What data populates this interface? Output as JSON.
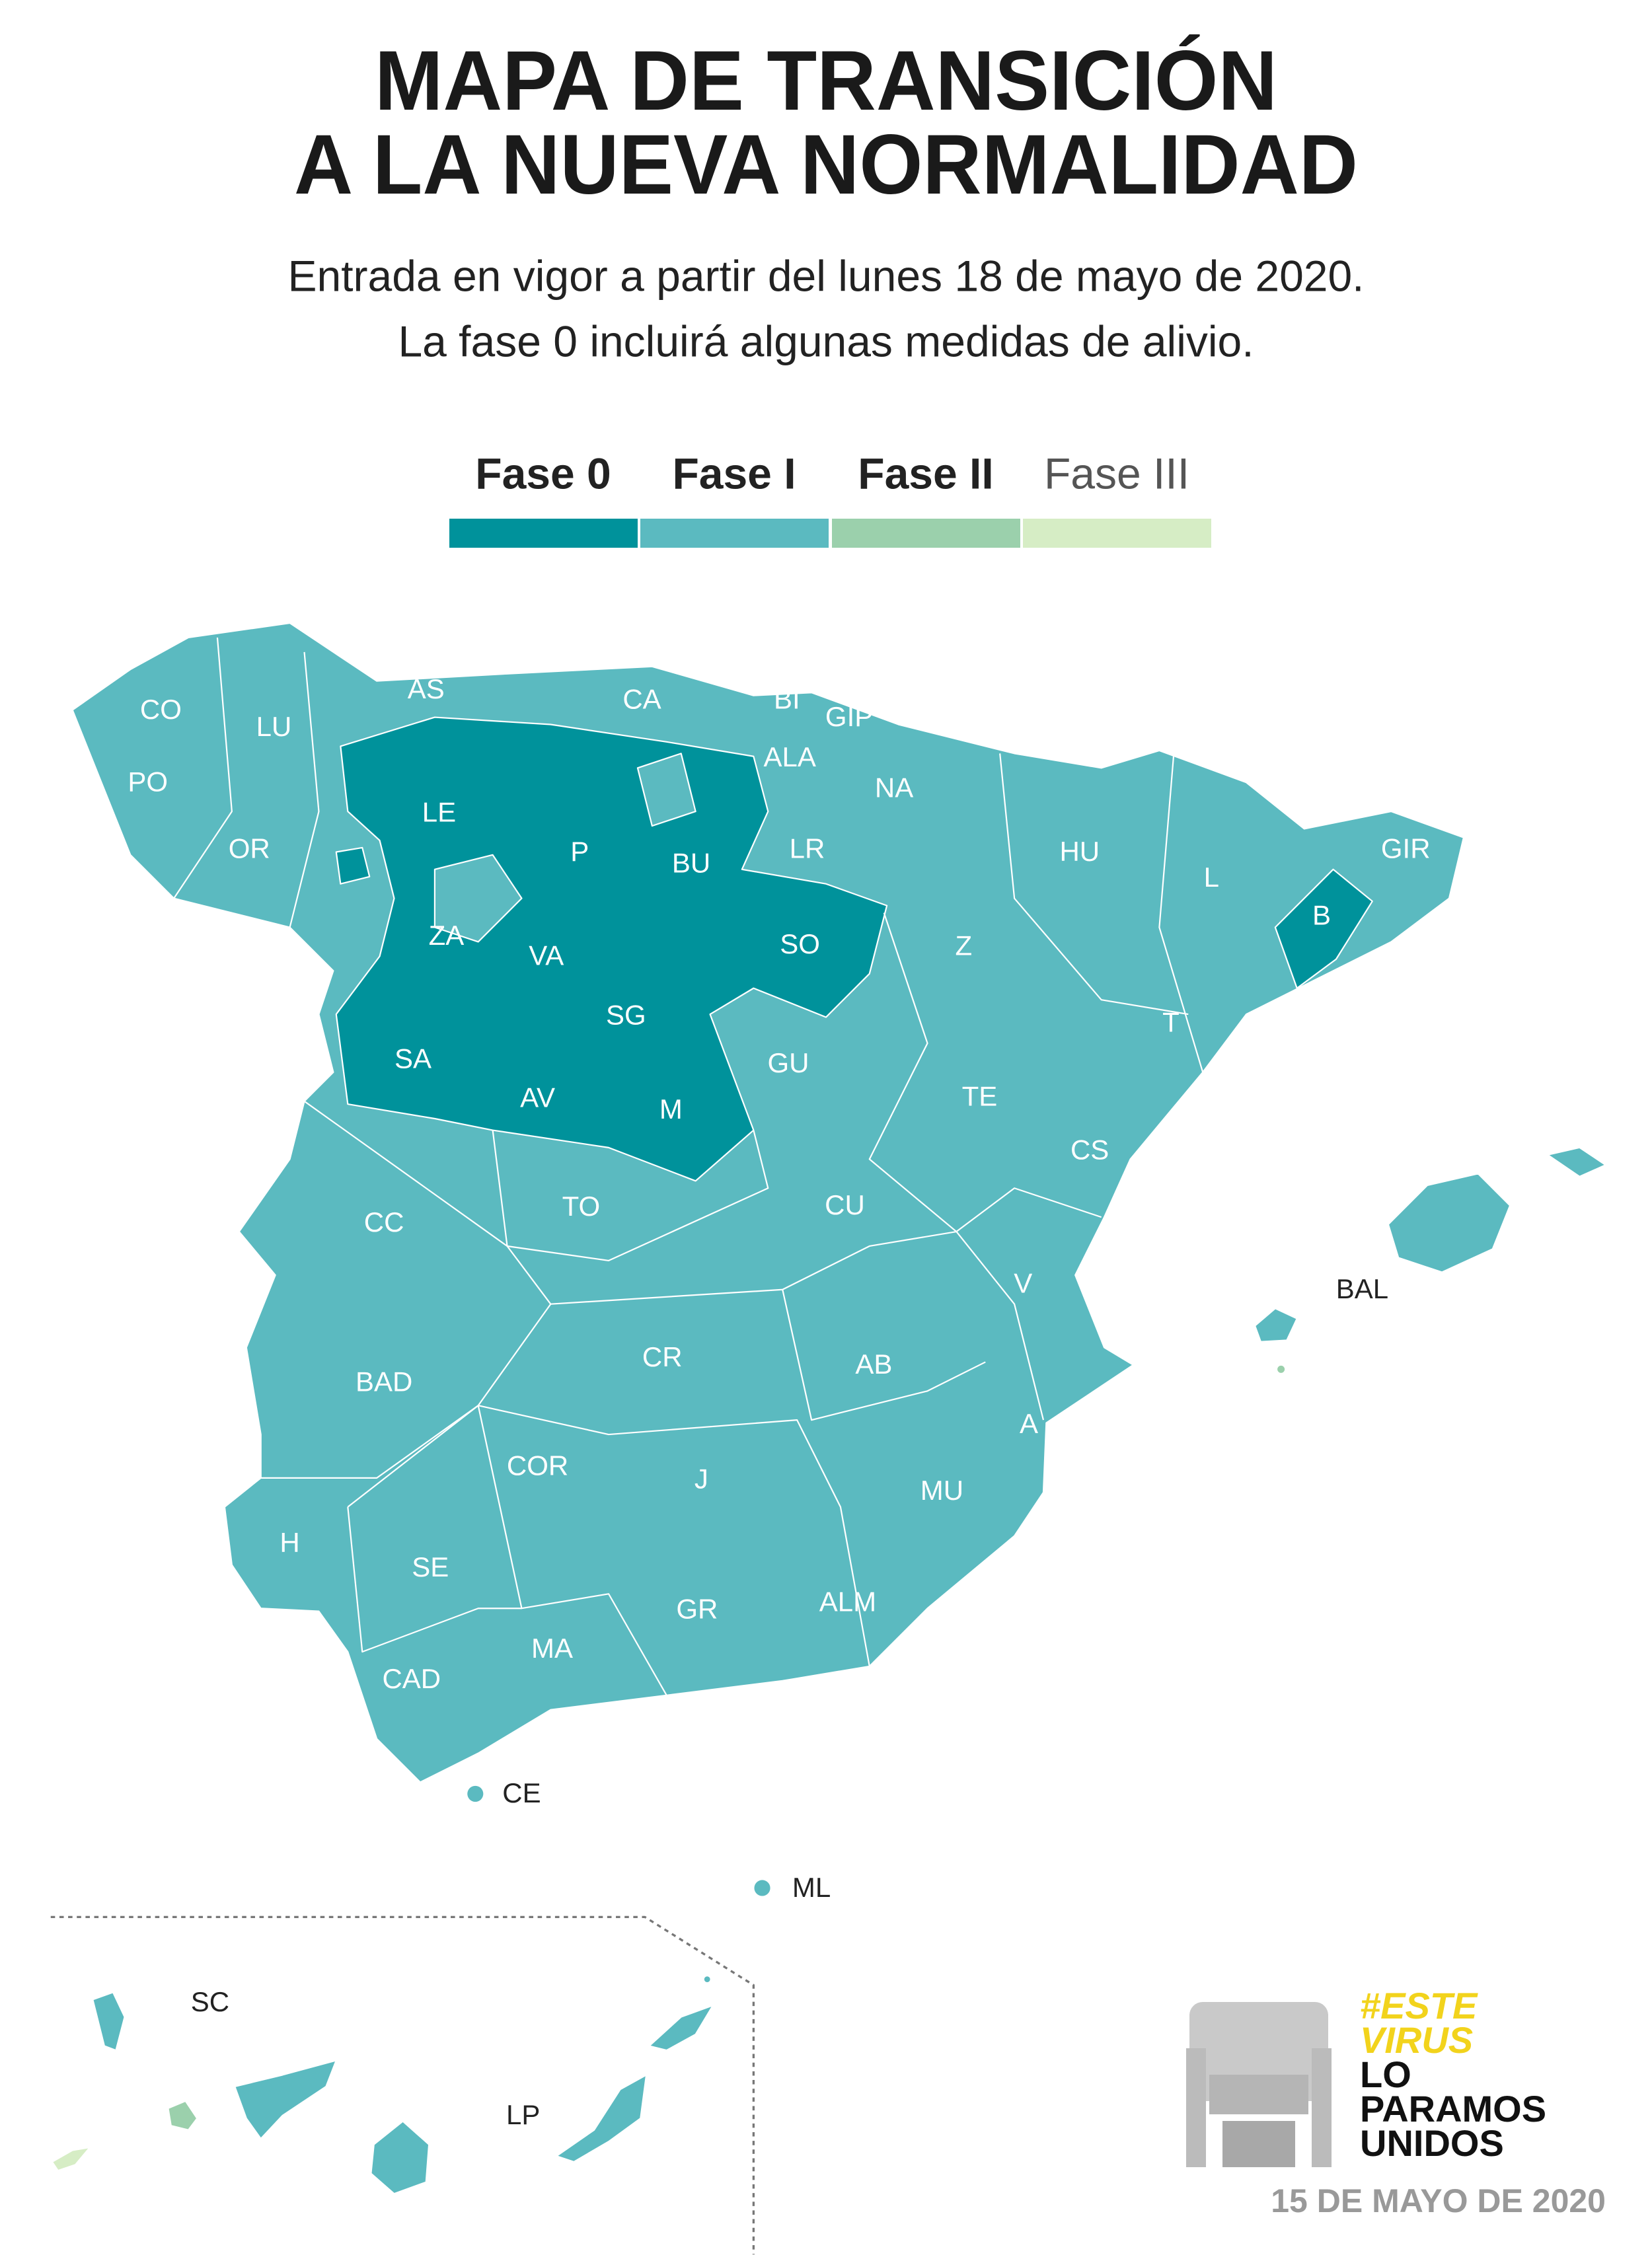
{
  "header": {
    "title_lines": [
      "MAPA DE TRANSICIÓN",
      "A LA NUEVA NORMALIDAD"
    ],
    "subtitle_lines": [
      "Entrada en vigor a partir del lunes 18 de mayo de 2020.",
      "La fase 0 incluirá algunas medidas de alivio."
    ]
  },
  "legend": {
    "items": [
      "Fase 0",
      "Fase I",
      "Fase II",
      "Fase III"
    ]
  },
  "map": {
    "regions": [
      "CO",
      "LU",
      "AS",
      "CA",
      "BI",
      "GIP",
      "ALA",
      "NA",
      "PO",
      "OR",
      "LE",
      "P",
      "BU",
      "LR",
      "HU",
      "L",
      "GIR",
      "B",
      "ZA",
      "VA",
      "SO",
      "Z",
      "SG",
      "SA",
      "GU",
      "T",
      "AV",
      "M",
      "TE",
      "CS",
      "CC",
      "TO",
      "CU",
      "V",
      "BAD",
      "CR",
      "AB",
      "A",
      "COR",
      "J",
      "MU",
      "H",
      "SE",
      "ALM",
      "GR",
      "MA",
      "CAD"
    ],
    "outside_labels": [
      "BAL",
      "CE",
      "ML",
      "SC",
      "LP"
    ]
  },
  "logo": {
    "hashtag_lines": [
      "#ESTE",
      "VIRUS"
    ],
    "slogan_lines": [
      "LO",
      "PARAMOS",
      "UNIDOS"
    ]
  },
  "footer": {
    "date": "15 DE MAYO DE 2020"
  }
}
